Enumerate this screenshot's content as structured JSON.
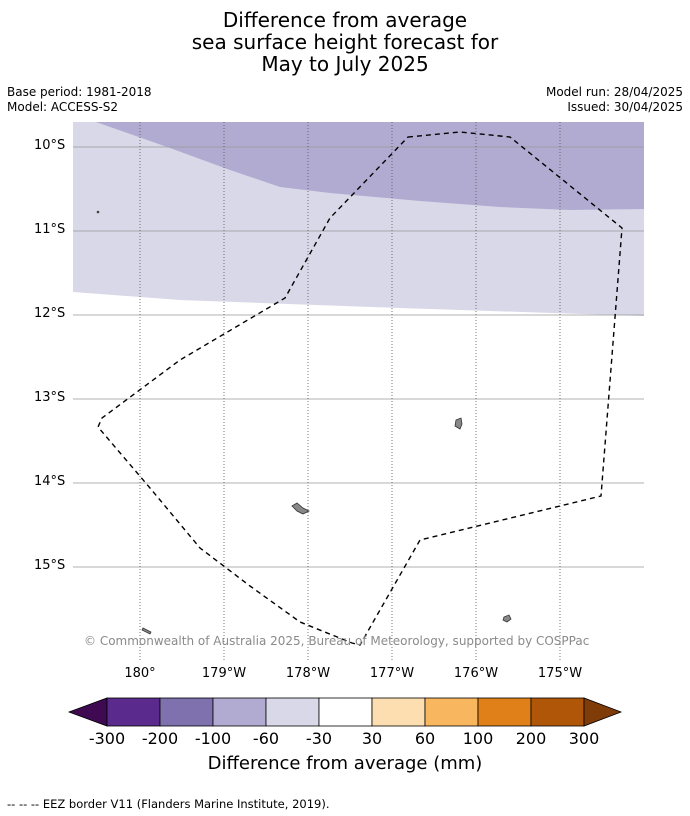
{
  "title": {
    "line1": "Difference from average",
    "line2": "sea surface height forecast for",
    "line3": "May to July 2025"
  },
  "meta_left": {
    "base_period": "Base period: 1981-2018",
    "model": "Model: ACCESS-S2"
  },
  "meta_right": {
    "model_run": "Model run: 28/04/2025",
    "issued": "Issued: 30/04/2025"
  },
  "map": {
    "lat_labels": [
      "10°S",
      "11°S",
      "12°S",
      "13°S",
      "14°S",
      "15°S"
    ],
    "lon_labels": [
      "180°",
      "179°W",
      "178°W",
      "177°W",
      "176°W",
      "175°W"
    ],
    "copyright": "© Commonwealth of Australia 2025, Bureau of Meteorology, supported by COSPPac",
    "colors": {
      "band_dark": "#b1abd2",
      "band_light": "#d8d8e8",
      "land": "#888888"
    }
  },
  "colorbar": {
    "labels": [
      "-300",
      "-200",
      "-100",
      "-60",
      "-30",
      "30",
      "60",
      "100",
      "200",
      "300"
    ],
    "colors": [
      "#3f0a52",
      "#5a2a8c",
      "#7f71ad",
      "#b1abd2",
      "#d8d8e8",
      "#ffffff",
      "#fddeb0",
      "#f8b65e",
      "#e08018",
      "#b05608",
      "#7f3b08"
    ],
    "title": "Difference from average (mm)"
  },
  "footer": "--  --  -- EEZ border V11 (Flanders Marine Institute, 2019)."
}
